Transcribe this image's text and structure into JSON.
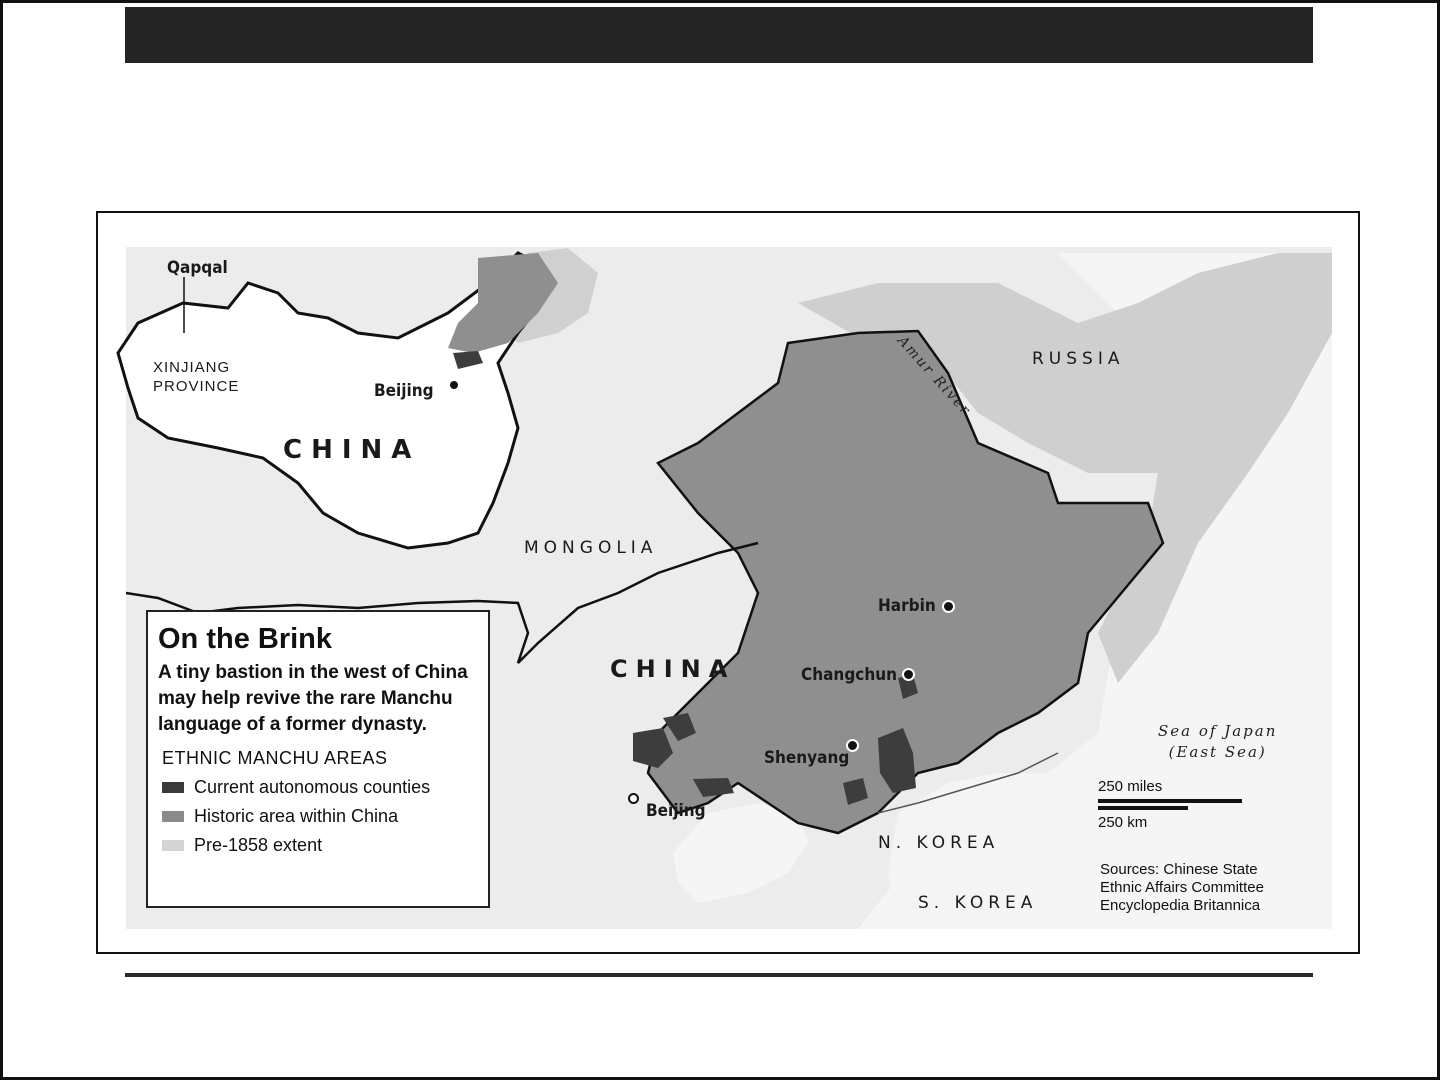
{
  "map": {
    "labels": {
      "qapqal": "Qapqal",
      "xinjiang_line1": "XINJIANG",
      "xinjiang_line2": "PROVINCE",
      "beijing_inset": "Beijing",
      "china_inset": "CHINA",
      "mongolia": "MONGOLIA",
      "china_main": "CHINA",
      "russia": "RUSSIA",
      "amur_river": "Amur River",
      "harbin": "Harbin",
      "changchun": "Changchun",
      "shenyang": "Shenyang",
      "beijing_main": "Beijing",
      "n_korea": "N. KOREA",
      "s_korea": "S. KOREA",
      "sea_line1": "Sea of Japan",
      "sea_line2": "(East Sea)"
    },
    "legend": {
      "title": "On the Brink",
      "subtitle": "A tiny bastion in the west of China may help revive the rare Manchu language of a former dynasty.",
      "heading": "ETHNIC MANCHU AREAS",
      "items": [
        {
          "label": "Current autonomous counties",
          "color": "#3a3a3a"
        },
        {
          "label": "Historic area within China",
          "color": "#8a8a8a"
        },
        {
          "label": "Pre-1858 extent",
          "color": "#d4d4d4"
        }
      ]
    },
    "scale": {
      "miles": "250 miles",
      "km": "250 km"
    },
    "sources": {
      "line1": "Sources: Chinese State",
      "line2": "Ethnic Affairs Committee",
      "line3": "Encyclopedia Britannica"
    },
    "colors": {
      "frame_bar": "#252525",
      "land": "#ebebeb",
      "sea": "#f7f7f7",
      "pre1858": "#c9c9c9",
      "historic": "#8c8c8c",
      "autonomous": "#3d3d3d"
    }
  }
}
